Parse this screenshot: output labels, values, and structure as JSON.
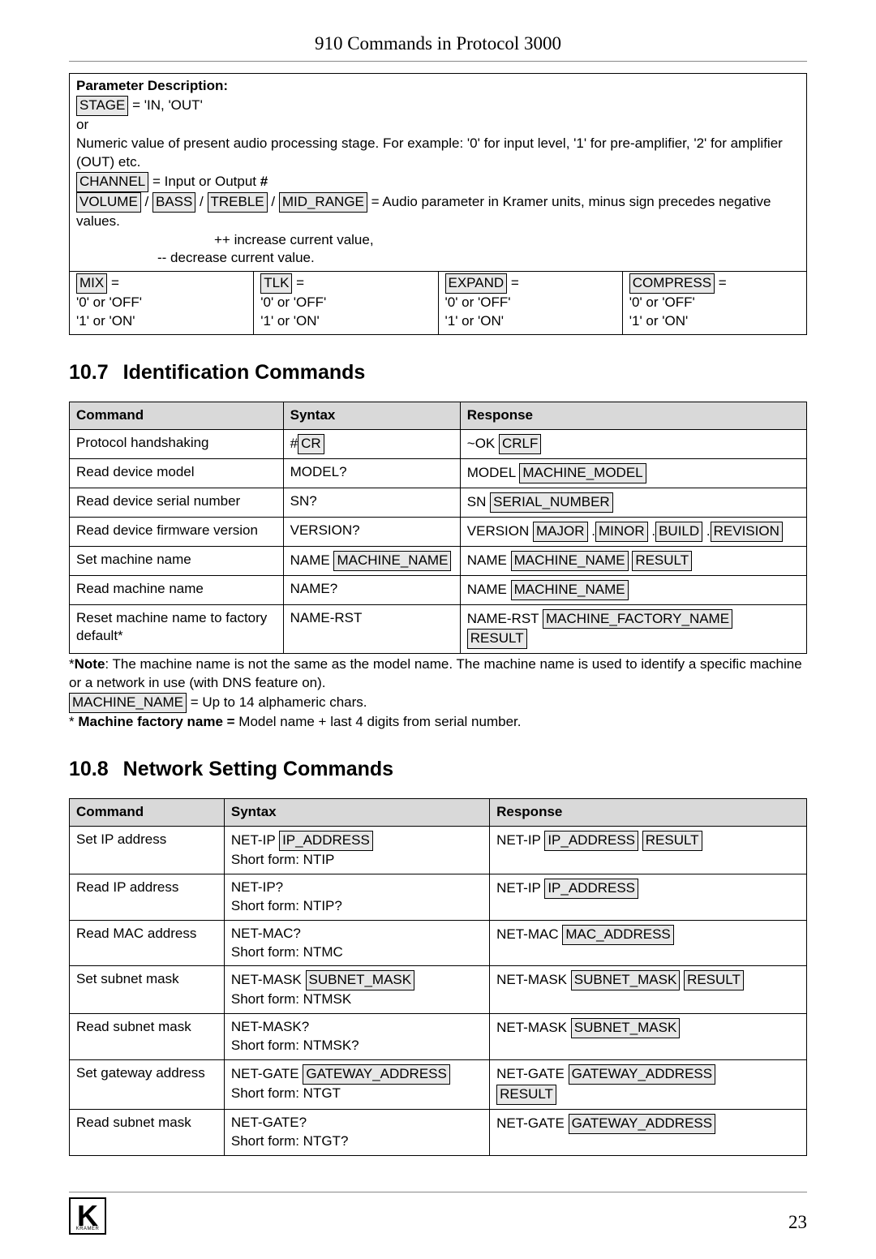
{
  "header": {
    "title": "910 Commands in Protocol 3000"
  },
  "param_box": {
    "title": "Parameter Description:",
    "stage_key": "STAGE",
    "stage_val": " = 'IN, 'OUT'",
    "or": "or",
    "numeric_desc": "Numeric value of present audio processing stage. For example: '0' for input level, '1' for pre-amplifier, '2' for amplifier (OUT) etc.",
    "channel_key": "CHANNEL",
    "channel_val": " = Input or Output ",
    "channel_hash": "#",
    "vol_key": "VOLUME",
    "bass_key": "BASS",
    "treble_key": "TREBLE",
    "mid_key": "MID_RANGE",
    "audio_desc": " = Audio parameter in Kramer units, minus sign precedes negative values.",
    "inc": "++ increase current value,",
    "dec": "-- decrease current value.",
    "cells": [
      {
        "k": "MIX",
        "l1": "'0' or 'OFF'",
        "l2": "'1' or 'ON'"
      },
      {
        "k": "TLK",
        "l1": "'0' or 'OFF'",
        "l2": "'1' or 'ON'"
      },
      {
        "k": "EXPAND",
        "l1": "'0' or 'OFF'",
        "l2": "'1' or 'ON'"
      },
      {
        "k": "COMPRESS",
        "l1": "'0' or 'OFF'",
        "l2": "'1' or 'ON'"
      }
    ]
  },
  "sec1": {
    "num": "10.7",
    "title": "Identification Commands"
  },
  "id_table": {
    "h1": "Command",
    "h2": "Syntax",
    "h3": "Response",
    "rows": [
      {
        "c": "Protocol handshaking",
        "s_pre": "#",
        "s_box": "CR",
        "r_pre": "~OK ",
        "r_boxes": [
          "CRLF"
        ]
      },
      {
        "c": "Read device model",
        "s_pre": "MODEL?",
        "r_pre": "MODEL ",
        "r_boxes": [
          "MACHINE_MODEL"
        ]
      },
      {
        "c": "Read device serial number",
        "s_pre": "SN?",
        "r_pre": "SN ",
        "r_boxes": [
          "SERIAL_NUMBER"
        ]
      },
      {
        "c": "Read device firmware version",
        "s_pre": "VERSION?",
        "r_pre": "VERSION ",
        "r_boxes": [
          "MAJOR",
          "MINOR",
          "BUILD",
          "REVISION"
        ],
        "r_sep": " ."
      },
      {
        "c": "Set machine name",
        "s_pre": "NAME ",
        "s_box": "MACHINE_NAME",
        "r_pre": "NAME ",
        "r_boxes": [
          "MACHINE_NAME",
          "RESULT"
        ],
        "r_sep": " "
      },
      {
        "c": "Read machine name",
        "s_pre": "NAME?",
        "r_pre": "NAME ",
        "r_boxes": [
          "MACHINE_NAME"
        ]
      },
      {
        "c": "Reset machine name to factory default*",
        "s_pre": "NAME-RST",
        "r_pre": "NAME-RST ",
        "r_boxes": [
          "MACHINE_FACTORY_NAME"
        ],
        "r_line2_box": "RESULT"
      }
    ]
  },
  "note1": {
    "l1a": "*",
    "l1b": "Note",
    "l1c": ": The machine name is not the same as the model name. The machine name is used to identify a specific machine or a network in use (with DNS feature on).",
    "l2_box": "MACHINE_NAME",
    "l2_rest": " = Up to 14 alphameric chars.",
    "l3a": "* ",
    "l3b": "Machine factory name = ",
    "l3c": "Model name + last 4 digits from serial number."
  },
  "sec2": {
    "num": "10.8",
    "title": "Network Setting Commands"
  },
  "net_table": {
    "h1": "Command",
    "h2": "Syntax",
    "h3": "Response",
    "rows": [
      {
        "c": "Set IP address",
        "s_pre": "NET-IP ",
        "s_box": "IP_ADDRESS",
        "s_l2": "Short form: NTIP",
        "r_pre": "NET-IP ",
        "r_boxes": [
          "IP_ADDRESS",
          "RESULT"
        ],
        "r_sep": "  "
      },
      {
        "c": "Read IP address",
        "s_pre": "NET-IP?",
        "s_l2": "Short form: NTIP?",
        "r_pre": "NET-IP ",
        "r_boxes": [
          "IP_ADDRESS"
        ]
      },
      {
        "c": "Read MAC address",
        "s_pre": "NET-MAC?",
        "s_l2": "Short form: NTMC",
        "r_pre": "NET-MAC ",
        "r_boxes": [
          "MAC_ADDRESS"
        ]
      },
      {
        "c": "Set subnet mask",
        "s_pre": "NET-MASK ",
        "s_box": "SUBNET_MASK",
        "s_l2": "Short form: NTMSK",
        "r_pre": "NET-MASK ",
        "r_boxes": [
          "SUBNET_MASK",
          "RESULT"
        ],
        "r_sep": " "
      },
      {
        "c": "Read subnet mask",
        "s_pre": "NET-MASK?",
        "s_l2": "Short form: NTMSK?",
        "r_pre": "NET-MASK ",
        "r_boxes": [
          "SUBNET_MASK"
        ]
      },
      {
        "c": "Set gateway address",
        "s_pre": "NET-GATE ",
        "s_box": "GATEWAY_ADDRESS",
        "s_l2": "Short form: NTGT",
        "r_pre": "NET-GATE ",
        "r_boxes": [
          "GATEWAY_ADDRESS"
        ],
        "r_line2_box": "RESULT"
      },
      {
        "c": "Read subnet mask",
        "s_pre": "NET-GATE?",
        "s_l2": "Short form: NTGT?",
        "r_pre": "NET-GATE ",
        "r_boxes": [
          "GATEWAY_ADDRESS"
        ]
      }
    ]
  },
  "footer": {
    "page": "23",
    "logo_sub": "KRAMER"
  }
}
